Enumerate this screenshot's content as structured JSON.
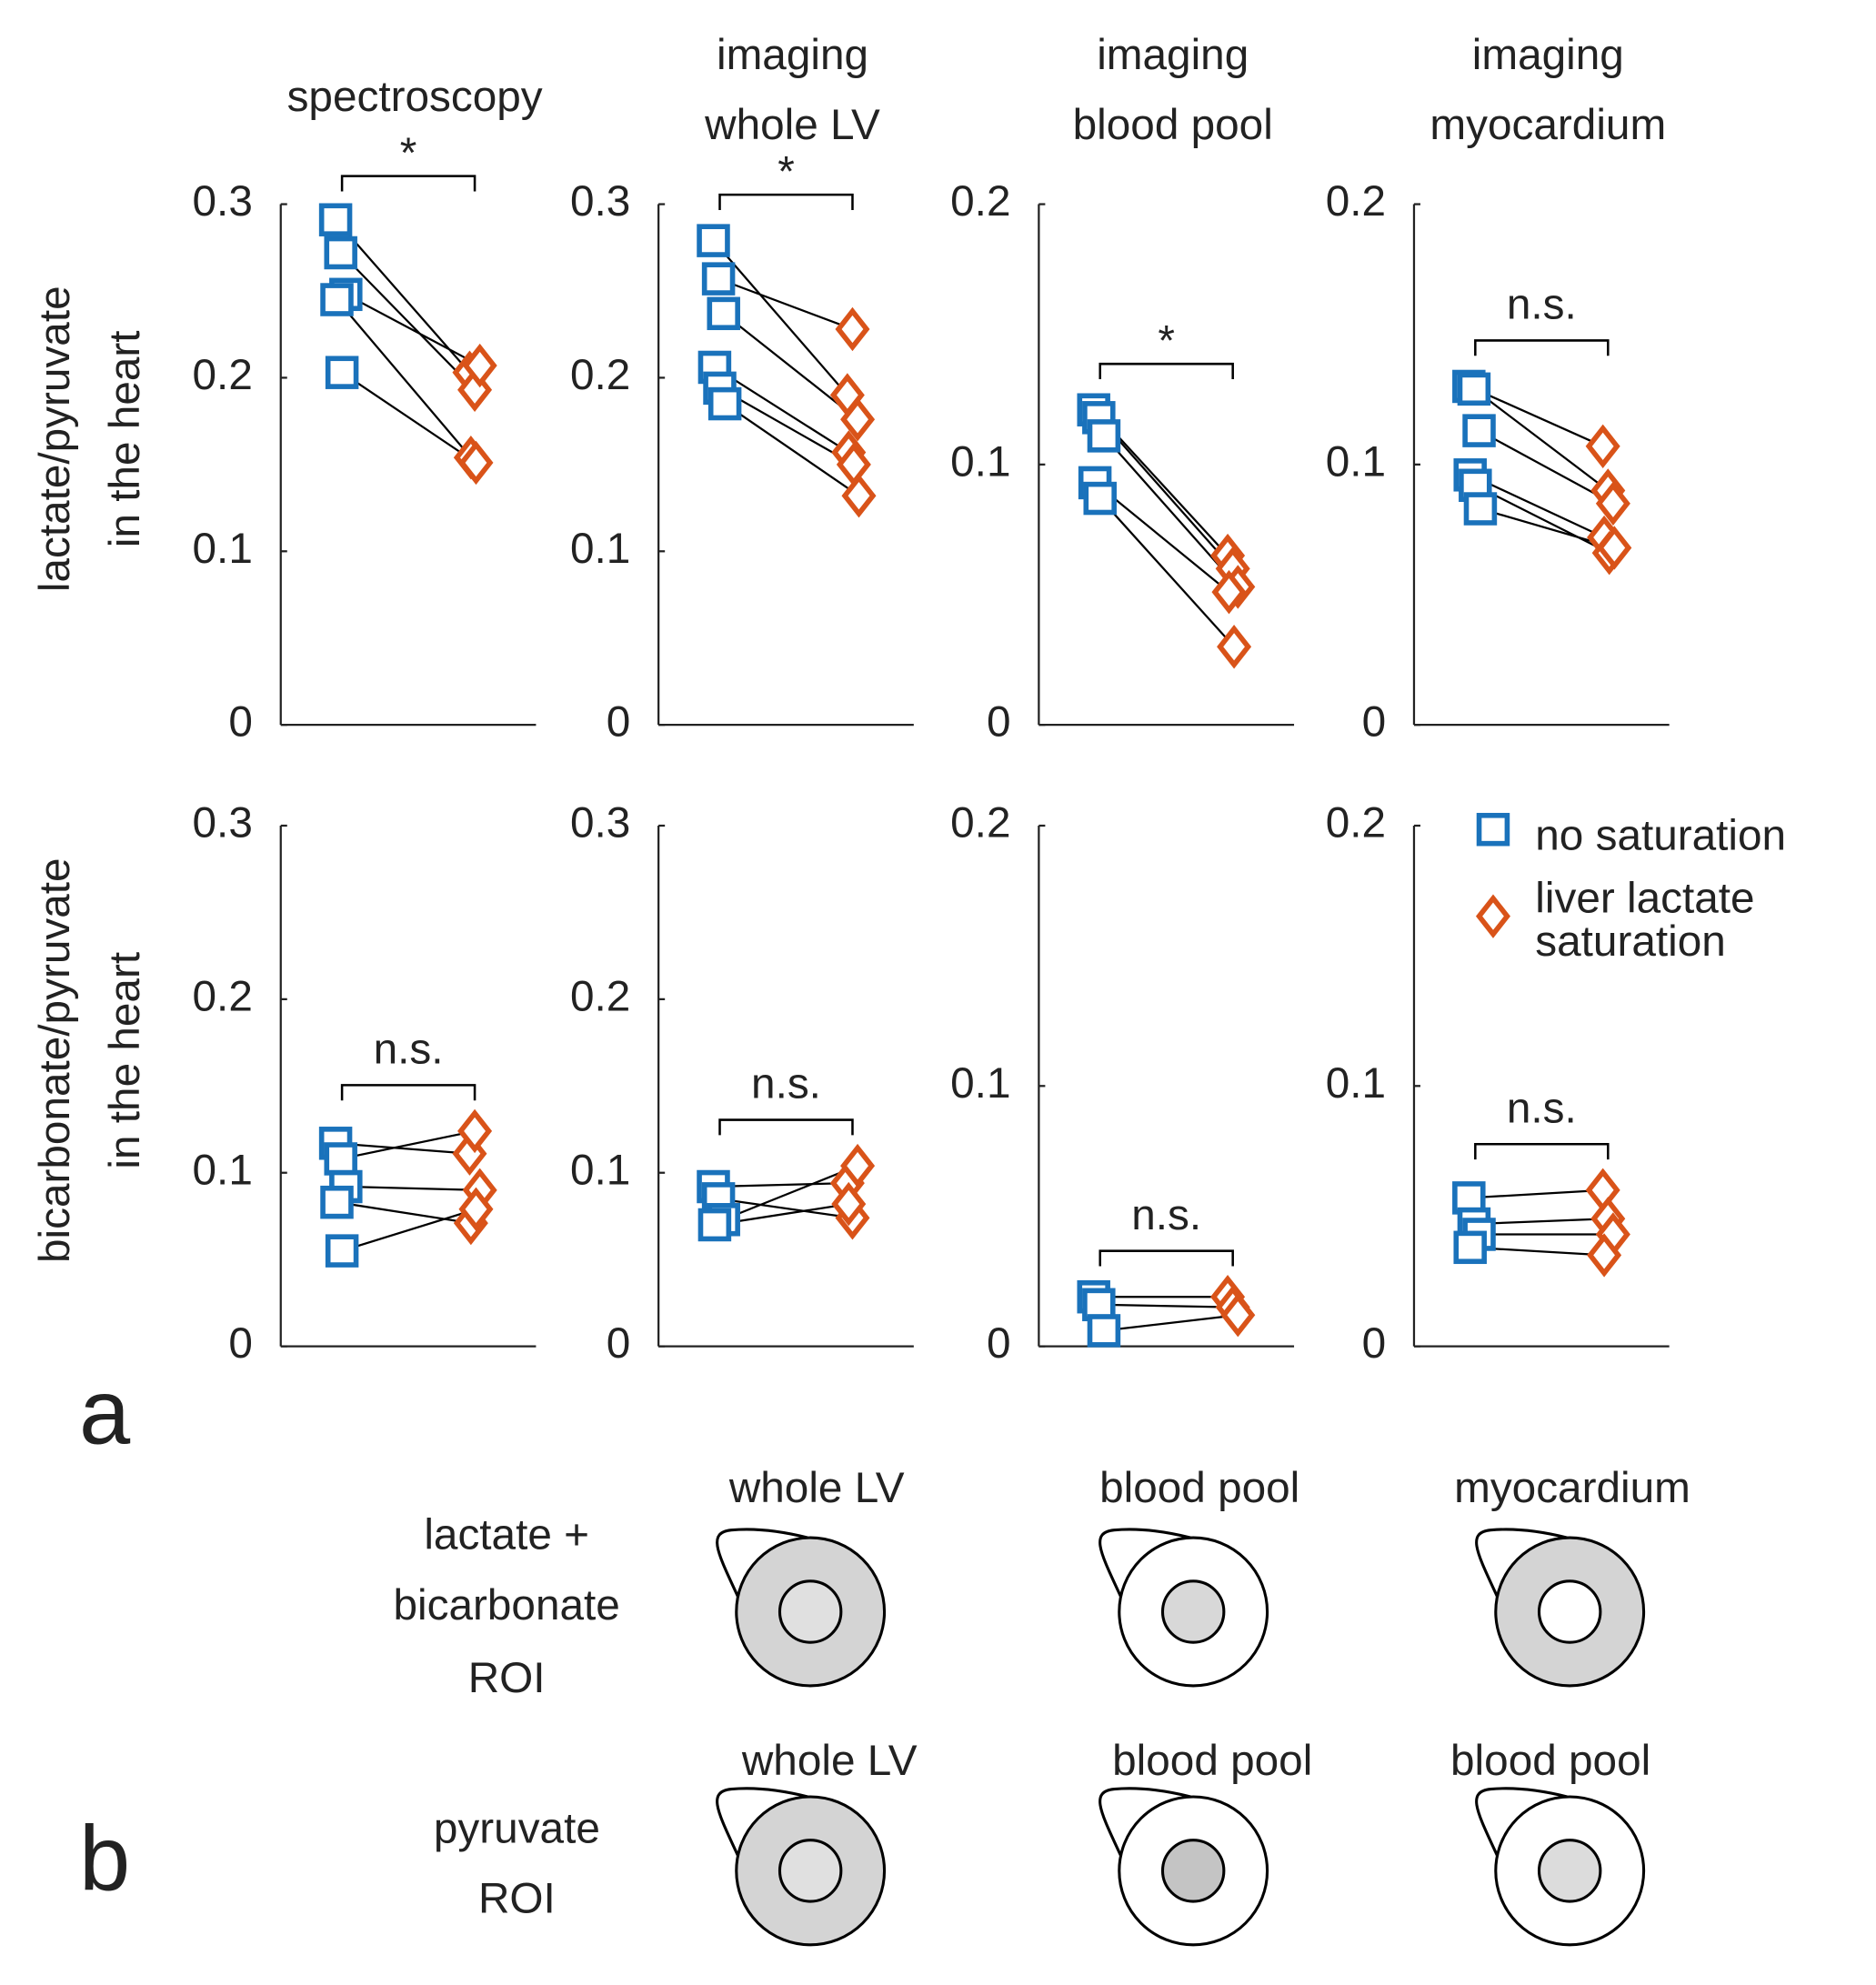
{
  "chart_data": [
    {
      "type": "paired",
      "title": [
        "spectroscopy"
      ],
      "ylabel": [
        "lactate/pyruvate",
        "in the heart"
      ],
      "annotation": "*",
      "ylim": [
        0,
        0.3
      ],
      "yticks": [
        0,
        0.1,
        0.2,
        0.3
      ],
      "series": [
        {
          "color": "#1a72bb",
          "marker": "square",
          "values": [
            0.291,
            0.272,
            0.248,
            0.245,
            0.203
          ]
        },
        {
          "color": "#d95319",
          "marker": "diamond",
          "values": [
            0.203,
            0.193,
            0.207,
            0.154,
            0.151
          ]
        }
      ]
    },
    {
      "type": "paired",
      "title": [
        "imaging",
        "whole LV"
      ],
      "annotation": "*",
      "ylim": [
        0,
        0.3
      ],
      "yticks": [
        0,
        0.1,
        0.2,
        0.3
      ],
      "series": [
        {
          "color": "#1a72bb",
          "marker": "square",
          "values": [
            0.279,
            0.257,
            0.237,
            0.206,
            0.194,
            0.185
          ]
        },
        {
          "color": "#d95319",
          "marker": "diamond",
          "values": [
            0.19,
            0.228,
            0.176,
            0.157,
            0.15,
            0.132
          ]
        }
      ]
    },
    {
      "type": "paired",
      "title": [
        "imaging",
        "blood pool"
      ],
      "annotation": "*",
      "ylim": [
        0,
        0.2
      ],
      "yticks": [
        0,
        0.1,
        0.2
      ],
      "series": [
        {
          "color": "#1a72bb",
          "marker": "square",
          "values": [
            0.121,
            0.118,
            0.111,
            0.093,
            0.087
          ]
        },
        {
          "color": "#d95319",
          "marker": "diamond",
          "values": [
            0.065,
            0.06,
            0.053,
            0.051,
            0.03
          ]
        }
      ]
    },
    {
      "type": "paired",
      "title": [
        "imaging",
        "myocardium"
      ],
      "annotation": "n.s.",
      "ylim": [
        0,
        0.2
      ],
      "yticks": [
        0,
        0.1,
        0.2
      ],
      "series": [
        {
          "color": "#1a72bb",
          "marker": "square",
          "values": [
            0.13,
            0.129,
            0.113,
            0.096,
            0.092,
            0.083
          ]
        },
        {
          "color": "#d95319",
          "marker": "diamond",
          "values": [
            0.107,
            0.09,
            0.085,
            0.072,
            0.066,
            0.068
          ]
        }
      ]
    },
    {
      "type": "paired",
      "ylabel": [
        "bicarbonate/pyruvate",
        "in the heart"
      ],
      "annotation": "n.s.",
      "ylim": [
        0,
        0.3
      ],
      "yticks": [
        0,
        0.1,
        0.2,
        0.3
      ],
      "series": [
        {
          "color": "#1a72bb",
          "marker": "square",
          "values": [
            0.117,
            0.108,
            0.092,
            0.083,
            0.055
          ]
        },
        {
          "color": "#d95319",
          "marker": "diamond",
          "values": [
            0.111,
            0.124,
            0.09,
            0.071,
            0.079
          ]
        }
      ]
    },
    {
      "type": "paired",
      "annotation": "n.s.",
      "ylim": [
        0,
        0.3
      ],
      "yticks": [
        0,
        0.1,
        0.2,
        0.3
      ],
      "series": [
        {
          "color": "#1a72bb",
          "marker": "square",
          "values": [
            0.092,
            0.085,
            0.073,
            0.07
          ]
        },
        {
          "color": "#d95319",
          "marker": "diamond",
          "values": [
            0.094,
            0.074,
            0.104,
            0.082
          ]
        }
      ]
    },
    {
      "type": "paired",
      "annotation": "n.s.",
      "ylim": [
        0,
        0.2
      ],
      "yticks": [
        0,
        0.1,
        0.2
      ],
      "series": [
        {
          "color": "#1a72bb",
          "marker": "square",
          "values": [
            0.019,
            0.016,
            0.006
          ]
        },
        {
          "color": "#d95319",
          "marker": "diamond",
          "values": [
            0.019,
            0.015,
            0.012
          ]
        }
      ]
    },
    {
      "type": "paired",
      "annotation": "n.s.",
      "ylim": [
        0,
        0.2
      ],
      "yticks": [
        0,
        0.1,
        0.2
      ],
      "series": [
        {
          "color": "#1a72bb",
          "marker": "square",
          "values": [
            0.057,
            0.047,
            0.043,
            0.038
          ]
        },
        {
          "color": "#d95319",
          "marker": "diamond",
          "values": [
            0.06,
            0.049,
            0.043,
            0.035
          ]
        }
      ]
    }
  ],
  "legend": [
    {
      "name": [
        "no saturation"
      ],
      "color": "#1a72bb",
      "marker": "square"
    },
    {
      "name": [
        "liver lactate",
        "saturation"
      ],
      "color": "#d95319",
      "marker": "diamond"
    }
  ],
  "part_a": {
    "label": "a"
  },
  "part_b": {
    "label": "b",
    "rows": [
      {
        "label": [
          "lactate +",
          "bicarbonate",
          "ROI"
        ],
        "cells": [
          "whole LV",
          "blood pool",
          "myocardium"
        ]
      },
      {
        "label": [
          "pyruvate",
          "ROI"
        ],
        "cells": [
          "whole LV",
          "blood pool",
          "blood pool"
        ]
      }
    ]
  }
}
